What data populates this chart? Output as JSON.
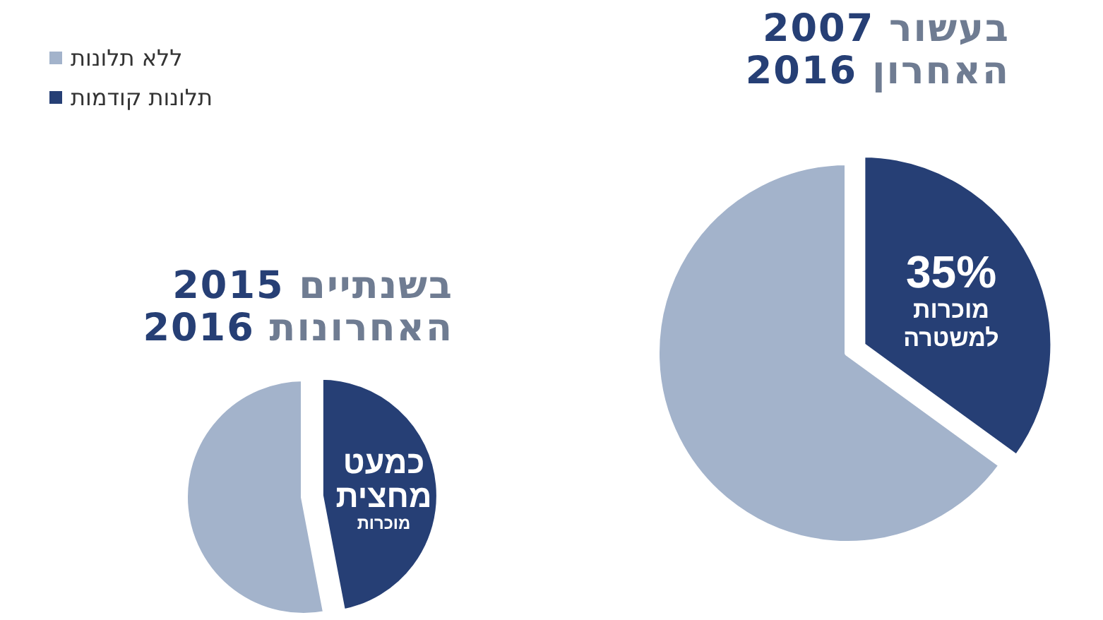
{
  "chart_data": [
    {
      "type": "pie",
      "title": "בעשור 2007\nהאחרון 2016",
      "categories": [
        "ללא תלונות",
        "תלונות קודמות"
      ],
      "values": [
        65,
        35
      ],
      "colors": [
        "#a3b3cb",
        "#263f75"
      ],
      "value_labels": [
        null,
        "35%"
      ],
      "annotations": [
        "מוכרות למשטרה"
      ],
      "legend": "top left"
    },
    {
      "type": "pie",
      "title": "בשנתיים 2015\nהאחרונות 2016",
      "categories": [
        null,
        null
      ],
      "values": [
        53,
        47
      ],
      "colors": [
        "#a3b3cb",
        "#263f75"
      ],
      "value_labels": [
        null,
        "כמעט מחצית"
      ],
      "annotations": [
        "מוכרות"
      ]
    }
  ]
}
